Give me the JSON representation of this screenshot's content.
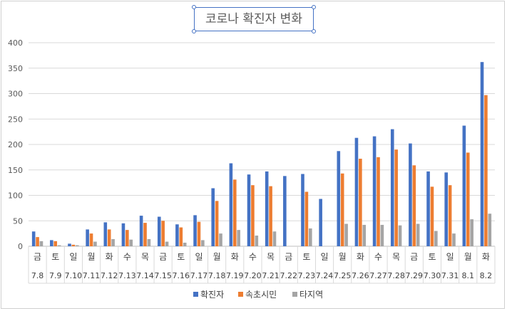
{
  "chart_data": {
    "type": "bar",
    "title": "코로나 확진자 변화",
    "xlabel": "",
    "ylabel": "",
    "ylim": [
      0,
      400
    ],
    "yticks": [
      0,
      50,
      100,
      150,
      200,
      250,
      300,
      350,
      400
    ],
    "grid": true,
    "legend_position": "bottom",
    "days": [
      "금",
      "토",
      "일",
      "월",
      "화",
      "수",
      "목",
      "금",
      "토",
      "일",
      "월",
      "화",
      "수",
      "목",
      "금",
      "토",
      "일",
      "월",
      "화",
      "수",
      "목",
      "금",
      "토",
      "일",
      "월",
      "화"
    ],
    "categories": [
      "7.8",
      "7.9",
      "7.10",
      "7.11",
      "7.12",
      "7.13",
      "7.14",
      "7.15",
      "7.16",
      "7.17",
      "7.18",
      "7.19",
      "7.20",
      "7.21",
      "7.22",
      "7.23",
      "7.24",
      "7.25",
      "7.26",
      "7.27",
      "7.28",
      "7.29",
      "7.30",
      "7.31",
      "8.1",
      "8.2"
    ],
    "series": [
      {
        "name": "확진자",
        "color": "#4472c4",
        "values": [
          29,
          12,
          5,
          33,
          47,
          45,
          60,
          58,
          43,
          61,
          114,
          163,
          141,
          147,
          138,
          142,
          93,
          187,
          213,
          216,
          230,
          202,
          147,
          145,
          237,
          362
        ]
      },
      {
        "name": "속초시민",
        "color": "#ed7d31",
        "values": [
          18,
          10,
          3,
          25,
          33,
          32,
          46,
          50,
          37,
          48,
          89,
          131,
          120,
          118,
          null,
          107,
          null,
          143,
          172,
          175,
          190,
          159,
          117,
          120,
          184,
          297
        ]
      },
      {
        "name": "타지역",
        "color": "#a5a5a5",
        "values": [
          10,
          2,
          2,
          9,
          14,
          13,
          14,
          9,
          7,
          12,
          25,
          32,
          21,
          29,
          null,
          35,
          null,
          44,
          42,
          42,
          41,
          44,
          30,
          25,
          53,
          64
        ]
      }
    ]
  }
}
